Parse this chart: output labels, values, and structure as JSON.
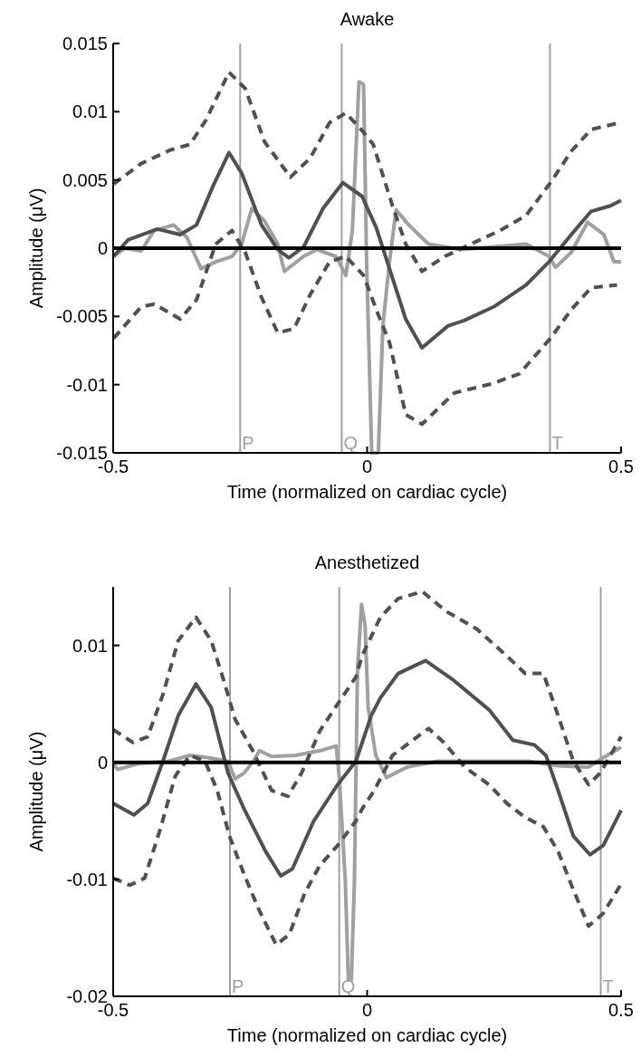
{
  "chart_data": [
    {
      "type": "line",
      "title": "Awake",
      "xlabel": "Time (normalized on cardiac cycle)",
      "ylabel": "Amplitude (μV)",
      "xlim": [
        -0.5,
        0.5
      ],
      "xticks": [
        -0.5,
        0,
        0.5
      ],
      "ylim": [
        -0.015,
        0.015
      ],
      "yticks": [
        -0.015,
        -0.01,
        -0.005,
        0,
        0.005,
        0.01,
        0.015
      ],
      "series": [
        {
          "color": "#a0a0a0",
          "line_style": "solid",
          "x": [
            -0.499,
            -0.477,
            -0.445,
            -0.419,
            -0.381,
            -0.355,
            -0.327,
            -0.298,
            -0.266,
            -0.247,
            -0.227,
            -0.202,
            -0.176,
            -0.163,
            -0.125,
            -0.099,
            -0.061,
            -0.042,
            -0.029,
            -0.016,
            -0.007,
            -0.001,
            0.009,
            0.022,
            0.031,
            0.044,
            0.057,
            0.082,
            0.121,
            0.185,
            0.249,
            0.313,
            0.358,
            0.371,
            0.402,
            0.434,
            0.466,
            0.486,
            0.5
          ],
          "values": [
            -0.0006,
            0,
            -0.0002,
            0.0013,
            0.0017,
            0.0008,
            -0.0015,
            -0.001,
            -0.0006,
            0.0003,
            0.0029,
            0.002,
            0.0003,
            -0.0017,
            -0.0006,
            -0.0001,
            -0.0006,
            -0.002,
            0.0013,
            0.0122,
            0.012,
            -0.001,
            -0.015,
            -0.015,
            -0.0057,
            -0.001,
            0.0028,
            0.0017,
            0.0003,
            -0.0001,
            0.0001,
            0.0003,
            -0.0006,
            -0.0014,
            -0.0003,
            0.0019,
            0.001,
            -0.001,
            -0.001
          ]
        },
        {
          "color": "#505050",
          "line_style": "dashed",
          "x": [
            -0.499,
            -0.445,
            -0.387,
            -0.349,
            -0.317,
            -0.272,
            -0.24,
            -0.202,
            -0.151,
            -0.112,
            -0.074,
            -0.042,
            -0.007,
            0.012,
            0.05,
            0.076,
            0.108,
            0.153,
            0.204,
            0.262,
            0.313,
            0.361,
            0.402,
            0.441,
            0.498
          ],
          "values": [
            0.0047,
            0.0062,
            0.0072,
            0.0076,
            0.0094,
            0.0129,
            0.0117,
            0.0078,
            0.0052,
            0.0066,
            0.0092,
            0.0099,
            0.0085,
            0.0076,
            0.0031,
            0.0003,
            -0.0017,
            -0.0006,
            0.0003,
            0.0013,
            0.0024,
            0.0048,
            0.0071,
            0.0087,
            0.0092
          ]
        },
        {
          "color": "#505050",
          "line_style": "dashed",
          "x": [
            -0.499,
            -0.445,
            -0.419,
            -0.368,
            -0.336,
            -0.298,
            -0.266,
            -0.24,
            -0.208,
            -0.176,
            -0.144,
            -0.112,
            -0.074,
            -0.042,
            -0.007,
            0.018,
            0.044,
            0.076,
            0.108,
            0.172,
            0.249,
            0.3,
            0.361,
            0.402,
            0.441,
            0.492
          ],
          "values": [
            -0.0066,
            -0.0043,
            -0.0041,
            -0.0052,
            -0.0038,
            0.0003,
            0.0013,
            -0.0003,
            -0.0036,
            -0.0062,
            -0.0059,
            -0.0034,
            -0.001,
            -0.0006,
            -0.002,
            -0.0045,
            -0.0069,
            -0.0122,
            -0.0129,
            -0.0106,
            -0.0099,
            -0.0092,
            -0.0066,
            -0.0045,
            -0.0029,
            -0.0027
          ]
        },
        {
          "color": "#505050",
          "line_style": "solid",
          "x": [
            -0.499,
            -0.471,
            -0.413,
            -0.368,
            -0.336,
            -0.304,
            -0.272,
            -0.247,
            -0.208,
            -0.176,
            -0.154,
            -0.125,
            -0.087,
            -0.048,
            -0.01,
            0.018,
            0.044,
            0.076,
            0.108,
            0.159,
            0.191,
            0.249,
            0.313,
            0.358,
            0.402,
            0.441,
            0.479,
            0.5
          ],
          "values": [
            -0.0006,
            0.0006,
            0.0014,
            0.001,
            0.0017,
            0.0045,
            0.007,
            0.0055,
            0.0017,
            -0.0001,
            -0.0007,
            0.0001,
            0.0029,
            0.0048,
            0.0038,
            0.0015,
            -0.0015,
            -0.0052,
            -0.0073,
            -0.0057,
            -0.0053,
            -0.0043,
            -0.0027,
            -0.001,
            0.001,
            0.0027,
            0.0031,
            0.0035
          ]
        }
      ],
      "ref_lines": [
        {
          "axis": "x",
          "value": -0.25,
          "label": "P",
          "color": "#a0a0a0"
        },
        {
          "axis": "x",
          "value": -0.05,
          "label": "Q",
          "color": "#a0a0a0"
        },
        {
          "axis": "x",
          "value": 0.36,
          "label": "T",
          "color": "#a0a0a0"
        },
        {
          "axis": "y",
          "value": 0,
          "color": "#000000"
        }
      ]
    },
    {
      "type": "line",
      "title": "Anesthetized",
      "xlabel": "Time (normalized on cardiac cycle)",
      "ylabel": "Amplitude (μV)",
      "xlim": [
        -0.5,
        0.5
      ],
      "xticks": [
        -0.5,
        0,
        0.5
      ],
      "ylim": [
        -0.02,
        0.015
      ],
      "yticks": [
        -0.02,
        -0.01,
        0,
        0.01
      ],
      "series": [
        {
          "color": "#a0a0a0",
          "line_style": "solid",
          "x": [
            -0.5,
            -0.491,
            -0.45,
            -0.39,
            -0.349,
            -0.313,
            -0.274,
            -0.26,
            -0.242,
            -0.224,
            -0.212,
            -0.188,
            -0.141,
            -0.093,
            -0.061,
            -0.055,
            -0.043,
            -0.037,
            -0.031,
            -0.025,
            -0.019,
            -0.011,
            -0.004,
            0.002,
            0.017,
            0.038,
            0.079,
            0.139,
            0.228,
            0.317,
            0.376,
            0.436,
            0.465,
            0.5
          ],
          "values": [
            -0.0001,
            -0.0006,
            -0.0001,
            0.0001,
            0.0006,
            0.0004,
            0.0001,
            -0.0014,
            -0.0009,
            0.0001,
            0.001,
            0.0005,
            0.0006,
            0.001,
            0.0014,
            -0.0012,
            -0.0101,
            -0.0186,
            -0.0186,
            -0.0101,
            0.0078,
            0.0135,
            0.0117,
            0.0047,
            0.0006,
            -0.0013,
            -0.0004,
            0.0001,
            0.0001,
            0.0001,
            -0.0003,
            -0.0004,
            0.0004,
            0.0013
          ]
        },
        {
          "color": "#505050",
          "line_style": "dashed",
          "x": [
            -0.5,
            -0.461,
            -0.432,
            -0.402,
            -0.372,
            -0.337,
            -0.307,
            -0.283,
            -0.26,
            -0.224,
            -0.188,
            -0.156,
            -0.129,
            -0.093,
            -0.058,
            -0.022,
            -0.01,
            0.026,
            0.061,
            0.109,
            0.156,
            0.216,
            0.275,
            0.311,
            0.347,
            0.376,
            0.406,
            0.436,
            0.459,
            0.5
          ],
          "values": [
            0.0028,
            0.0017,
            0.0022,
            0.0058,
            0.0104,
            0.0124,
            0.0104,
            0.0071,
            0.0037,
            0.0009,
            -0.0024,
            -0.0029,
            -0.0009,
            0.0027,
            0.005,
            0.0073,
            0.0091,
            0.0124,
            0.014,
            0.0146,
            0.0129,
            0.0114,
            0.0091,
            0.0076,
            0.0076,
            0.004,
            0.0001,
            -0.0019,
            -0.0009,
            0.0022
          ]
        },
        {
          "color": "#505050",
          "line_style": "dashed",
          "x": [
            -0.5,
            -0.467,
            -0.438,
            -0.408,
            -0.378,
            -0.349,
            -0.319,
            -0.295,
            -0.271,
            -0.242,
            -0.212,
            -0.179,
            -0.153,
            -0.123,
            -0.093,
            -0.058,
            -0.022,
            -0.01,
            0.014,
            0.05,
            0.121,
            0.151,
            0.192,
            0.24,
            0.275,
            0.311,
            0.347,
            0.376,
            0.406,
            0.436,
            0.465,
            0.5
          ],
          "values": [
            -0.0099,
            -0.0105,
            -0.0099,
            -0.0058,
            -0.0012,
            0.0006,
            0.0001,
            -0.0024,
            -0.0063,
            -0.0096,
            -0.0127,
            -0.0156,
            -0.0147,
            -0.0112,
            -0.0088,
            -0.0071,
            -0.005,
            -0.004,
            -0.0024,
            0.0006,
            0.0029,
            0.0017,
            -0.0004,
            -0.0019,
            -0.0035,
            -0.0047,
            -0.0055,
            -0.0076,
            -0.0109,
            -0.014,
            -0.0129,
            -0.0104
          ]
        },
        {
          "color": "#505050",
          "line_style": "solid",
          "x": [
            -0.5,
            -0.459,
            -0.432,
            -0.402,
            -0.372,
            -0.337,
            -0.307,
            -0.274,
            -0.242,
            -0.2,
            -0.17,
            -0.147,
            -0.105,
            -0.058,
            -0.022,
            0.008,
            0.026,
            0.061,
            0.115,
            0.168,
            0.24,
            0.287,
            0.329,
            0.352,
            0.376,
            0.406,
            0.439,
            0.465,
            0.5
          ],
          "values": [
            -0.0035,
            -0.0045,
            -0.0035,
            0.0001,
            0.004,
            0.0067,
            0.0047,
            -0.0009,
            -0.004,
            -0.0076,
            -0.0097,
            -0.0091,
            -0.005,
            -0.0019,
            0.0001,
            0.004,
            0.0055,
            0.0076,
            0.0087,
            0.0071,
            0.0045,
            0.0019,
            0.0015,
            0.0006,
            -0.0024,
            -0.0063,
            -0.0079,
            -0.0071,
            -0.0041
          ]
        }
      ],
      "ref_lines": [
        {
          "axis": "x",
          "value": -0.27,
          "label": "P",
          "color": "#a0a0a0"
        },
        {
          "axis": "x",
          "value": -0.055,
          "label": "Q",
          "color": "#a0a0a0"
        },
        {
          "axis": "x",
          "value": 0.46,
          "label": "T",
          "color": "#a0a0a0"
        },
        {
          "axis": "y",
          "value": 0,
          "color": "#000000"
        }
      ]
    }
  ]
}
